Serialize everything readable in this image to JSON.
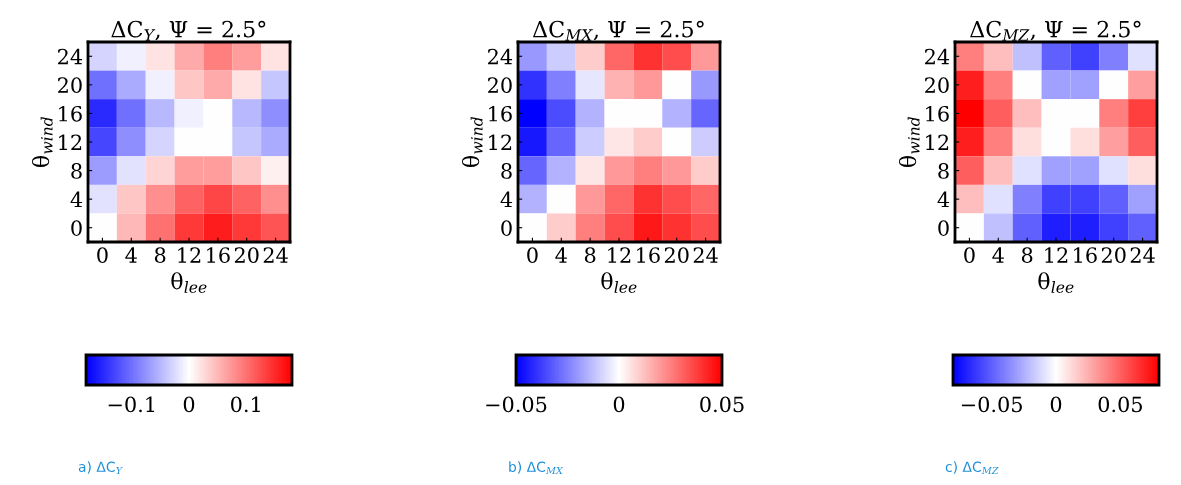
{
  "chart_data": [
    {
      "type": "heatmap",
      "title": "ΔC$_{Y}$, Ψ = 2.5°",
      "xlabel": "θ$_{lee}$",
      "ylabel": "θ$_{wind}$",
      "annotations": [
        "a) ΔC$_{Y}$"
      ],
      "categories": [
        "0",
        "4",
        "8",
        "12",
        "16",
        "20",
        "24"
      ],
      "y_categories": [
        "24",
        "20",
        "16",
        "12",
        "8",
        "4",
        "0"
      ],
      "cells": [
        [
          -0.03,
          -0.01,
          0.02,
          0.06,
          0.09,
          0.07,
          0.02
        ],
        [
          -0.1,
          -0.06,
          -0.01,
          0.04,
          0.06,
          0.02,
          -0.04
        ],
        [
          -0.15,
          -0.1,
          -0.05,
          -0.01,
          0.0,
          -0.05,
          -0.08
        ],
        [
          -0.13,
          -0.08,
          -0.03,
          0.0,
          0.0,
          -0.04,
          -0.06
        ],
        [
          -0.07,
          -0.02,
          0.03,
          0.07,
          0.07,
          0.04,
          0.01
        ],
        [
          -0.02,
          0.04,
          0.08,
          0.11,
          0.13,
          0.11,
          0.08
        ],
        [
          0.0,
          0.05,
          0.1,
          0.14,
          0.16,
          0.14,
          0.12
        ]
      ],
      "clim": [
        -0.18,
        0.18
      ],
      "cticks": [
        -0.1,
        0,
        0.1
      ]
    },
    {
      "type": "heatmap",
      "title": "ΔC$_{MX}$, Ψ = 2.5°",
      "xlabel": "θ$_{lee}$",
      "ylabel": "θ$_{wind}$",
      "annotations": [
        "b) ΔC$_{MX}$"
      ],
      "categories": [
        "0",
        "4",
        "8",
        "12",
        "16",
        "20",
        "24"
      ],
      "y_categories": [
        "24",
        "20",
        "16",
        "12",
        "8",
        "4",
        "0"
      ],
      "cells": [
        [
          -0.02,
          -0.01,
          0.01,
          0.03,
          0.04,
          0.035,
          0.02
        ],
        [
          -0.04,
          -0.025,
          -0.005,
          0.015,
          0.02,
          0.0,
          -0.02
        ],
        [
          -0.05,
          -0.035,
          -0.015,
          0.0,
          0.0,
          -0.015,
          -0.03
        ],
        [
          -0.045,
          -0.03,
          -0.01,
          0.005,
          0.01,
          0.0,
          -0.01
        ],
        [
          -0.03,
          -0.015,
          0.005,
          0.02,
          0.025,
          0.02,
          0.01
        ],
        [
          -0.015,
          0.0,
          0.02,
          0.03,
          0.04,
          0.035,
          0.03
        ],
        [
          0.0,
          0.01,
          0.025,
          0.035,
          0.045,
          0.04,
          0.035
        ]
      ],
      "clim": [
        -0.05,
        0.05
      ],
      "cticks": [
        -0.05,
        0,
        0.05
      ]
    },
    {
      "type": "heatmap",
      "title": "ΔC$_{MZ}$, Ψ = 2.5°",
      "xlabel": "θ$_{lee}$",
      "ylabel": "θ$_{wind}$",
      "annotations": [
        "c) ΔC$_{MZ}$"
      ],
      "categories": [
        "0",
        "4",
        "8",
        "12",
        "16",
        "20",
        "24"
      ],
      "y_categories": [
        "24",
        "20",
        "16",
        "12",
        "8",
        "4",
        "0"
      ],
      "cells": [
        [
          0.04,
          0.02,
          -0.02,
          -0.05,
          -0.06,
          -0.04,
          -0.01
        ],
        [
          0.07,
          0.04,
          0.0,
          -0.03,
          -0.03,
          0.0,
          0.03
        ],
        [
          0.08,
          0.05,
          0.02,
          0.0,
          0.0,
          0.04,
          0.06
        ],
        [
          0.07,
          0.04,
          0.01,
          0.0,
          0.01,
          0.03,
          0.05
        ],
        [
          0.05,
          0.02,
          -0.01,
          -0.03,
          -0.03,
          -0.01,
          0.01
        ],
        [
          0.02,
          -0.01,
          -0.04,
          -0.06,
          -0.06,
          -0.05,
          -0.03
        ],
        [
          0.0,
          -0.02,
          -0.05,
          -0.07,
          -0.07,
          -0.06,
          -0.05
        ]
      ],
      "clim": [
        -0.08,
        0.08
      ],
      "cticks": [
        -0.05,
        0,
        0.05
      ]
    }
  ]
}
